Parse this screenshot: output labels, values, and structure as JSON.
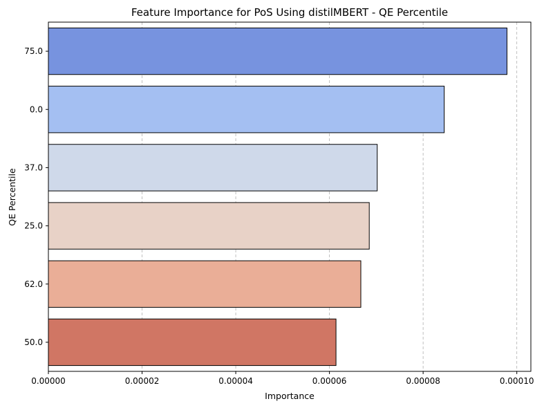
{
  "chart_data": {
    "type": "bar",
    "orientation": "horizontal",
    "title": "Feature Importance for PoS Using distilMBERT - QE Percentile",
    "xlabel": "Importance",
    "ylabel": "QE Percentile",
    "categories": [
      "75.0",
      "0.0",
      "37.0",
      "25.0",
      "62.0",
      "50.0"
    ],
    "values": [
      9.79e-05,
      8.45e-05,
      7.02e-05,
      6.85e-05,
      6.67e-05,
      6.14e-05
    ],
    "colors": [
      "#7793df",
      "#a4bff2",
      "#cfd9ea",
      "#e8d2c7",
      "#eaae97",
      "#d07664"
    ],
    "xlim": [
      0,
      0.000103
    ],
    "xticks": [
      0,
      2e-05,
      4e-05,
      6e-05,
      8e-05,
      0.0001
    ],
    "xtick_labels": [
      "0.00000",
      "0.00002",
      "0.00004",
      "0.00006",
      "0.00008",
      "0.00010"
    ],
    "grid": "x-dashed"
  }
}
